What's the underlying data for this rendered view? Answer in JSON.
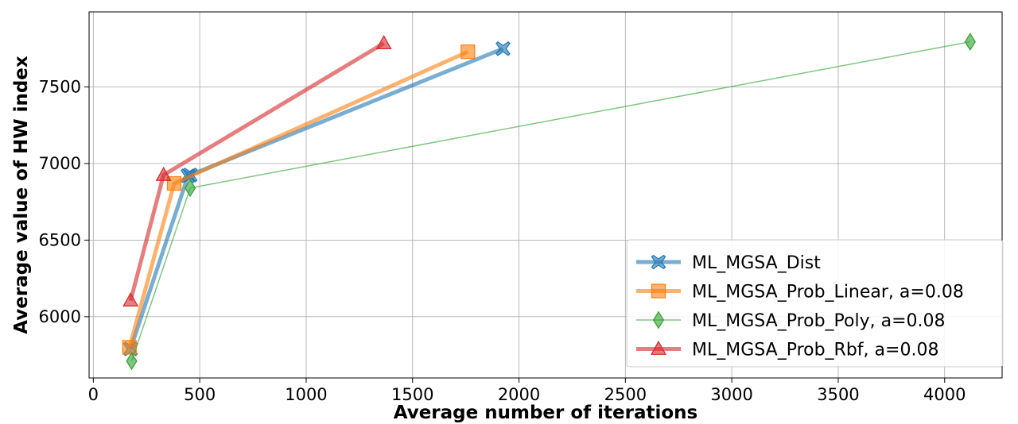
{
  "chart_data": {
    "type": "line",
    "title": "",
    "xlabel": "Average number of iterations",
    "ylabel": "Average value of HW index",
    "xlim": [
      -20,
      4270
    ],
    "ylim": [
      5600,
      7990
    ],
    "xticks": [
      0,
      500,
      1000,
      1500,
      2000,
      2500,
      3000,
      3500,
      4000
    ],
    "yticks": [
      6000,
      6500,
      7000,
      7500
    ],
    "grid": true,
    "legend_position": "lower-right",
    "series": [
      {
        "name": "ML_MGSA_Dist",
        "color": "#1f77b4",
        "marker": "x-filled",
        "linewidth": "thick",
        "x": [
          175,
          445,
          455,
          1925
        ],
        "y": [
          5790,
          6920,
          6925,
          7750
        ]
      },
      {
        "name": "ML_MGSA_Prob_Linear, a=0.08",
        "color": "#ff7f0e",
        "marker": "square",
        "linewidth": "thick",
        "x": [
          170,
          380,
          1760
        ],
        "y": [
          5800,
          6870,
          7730
        ]
      },
      {
        "name": "ML_MGSA_Prob_Poly, a=0.08",
        "color": "#2ca02c",
        "marker": "diamond",
        "linewidth": "thin",
        "x": [
          180,
          455,
          4120
        ],
        "y": [
          5710,
          6840,
          7795
        ]
      },
      {
        "name": "ML_MGSA_Prob_Rbf, a=0.08",
        "color": "#d62728",
        "marker": "triangle",
        "linewidth": "thick",
        "x": [
          175,
          330,
          1365
        ],
        "y": [
          6105,
          6925,
          7785
        ]
      }
    ]
  }
}
